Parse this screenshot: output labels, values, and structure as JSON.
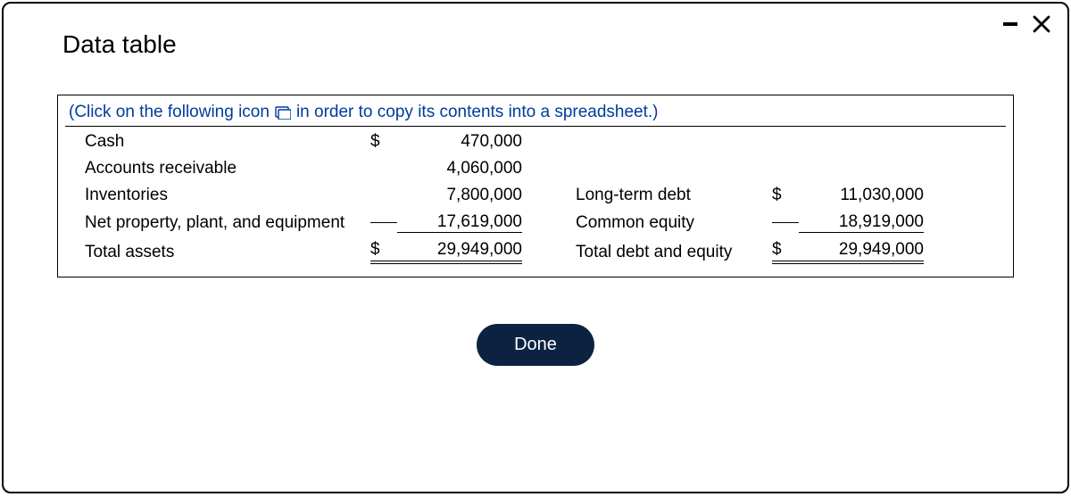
{
  "title": "Data table",
  "instruction": {
    "before": "(Click on the following icon",
    "after": "in order to copy its contents into a spreadsheet.)"
  },
  "currency_symbol": "$",
  "left_rows": [
    {
      "label": "Cash",
      "dollar": "$",
      "value": "470,000",
      "sum_after": false
    },
    {
      "label": "Accounts receivable",
      "dollar": "",
      "value": "4,060,000",
      "sum_after": false
    },
    {
      "label": "Inventories",
      "dollar": "",
      "value": "7,800,000",
      "sum_after": false
    },
    {
      "label": "Net property, plant, and equipment",
      "dollar": "",
      "value": "17,619,000",
      "sum_after": true
    },
    {
      "label": "Total assets",
      "dollar": "$",
      "value": "29,949,000",
      "grand": true
    }
  ],
  "right_rows": [
    {
      "label": "Long-term debt",
      "dollar": "$",
      "value": "11,030,000",
      "sum_after": false
    },
    {
      "label": "Common equity",
      "dollar": "",
      "value": "18,919,000",
      "sum_after": true
    },
    {
      "label": "Total debt and equity",
      "dollar": "$",
      "value": "29,949,000",
      "grand": true
    }
  ],
  "done_label": "Done",
  "colors": {
    "instruction_text": "#003b9c",
    "done_bg": "#0b2340",
    "done_fg": "#ffffff",
    "border": "#000000",
    "background": "#ffffff"
  }
}
